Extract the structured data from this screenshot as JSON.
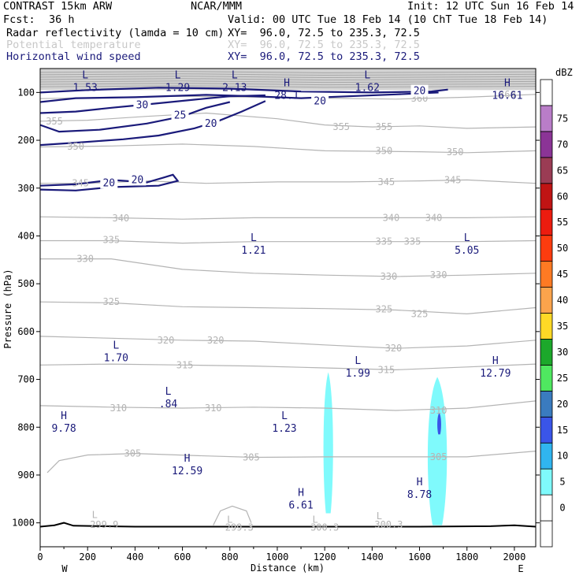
{
  "header": {
    "model": "CONTRAST 15km ARW",
    "org": "NCAR/MMM",
    "init": "Init: 12 UTC Sun 16 Feb 14",
    "fcst_label": "Fcst:",
    "fcst_value": "36 h",
    "valid": "Valid: 00 UTC Tue 18 Feb 14 (10 ChT Tue 18 Feb 14)",
    "fields": [
      {
        "name": "Radar reflectivity (lamda = 10 cm)",
        "xy": "XY=  96.0, 72.5 to 235.3, 72.5",
        "color": "#000000"
      },
      {
        "name": "Potential temperature",
        "xy": "XY=  96.0, 72.5 to 235.3, 72.5",
        "color": "#c8c8c8"
      },
      {
        "name": "Horizontal wind speed",
        "xy": "XY=  96.0, 72.5 to 235.3, 72.5",
        "color": "#1a1a7a"
      }
    ]
  },
  "chart_data": {
    "type": "cross-section contour",
    "xlabel": "Distance (km)",
    "ylabel": "Pressure (hPa)",
    "xlim": [
      0,
      2090
    ],
    "ylim": [
      1050,
      50
    ],
    "xticks": [
      0,
      200,
      400,
      600,
      800,
      1000,
      1200,
      1400,
      1600,
      1800,
      2000
    ],
    "yticks": [
      100,
      200,
      300,
      400,
      500,
      600,
      700,
      800,
      900,
      1000
    ],
    "left_end_label": "W",
    "right_end_label": "E",
    "theta_color": "#b4b4b4",
    "wind_color": "#1a1a7a",
    "theta_labels": [
      {
        "text": "360",
        "x": 1600,
        "p": 113
      },
      {
        "text": "360",
        "x": 1970,
        "p": 104
      },
      {
        "text": "355",
        "x": 60,
        "p": 160
      },
      {
        "text": "355",
        "x": 1270,
        "p": 172
      },
      {
        "text": "355",
        "x": 1450,
        "p": 172
      },
      {
        "text": "350",
        "x": 150,
        "p": 213
      },
      {
        "text": "350",
        "x": 1450,
        "p": 222
      },
      {
        "text": "350",
        "x": 1750,
        "p": 225
      },
      {
        "text": "345",
        "x": 170,
        "p": 290
      },
      {
        "text": "345",
        "x": 1460,
        "p": 287
      },
      {
        "text": "345",
        "x": 1740,
        "p": 283
      },
      {
        "text": "340",
        "x": 340,
        "p": 363
      },
      {
        "text": "340",
        "x": 1480,
        "p": 362
      },
      {
        "text": "340",
        "x": 1660,
        "p": 362
      },
      {
        "text": "335",
        "x": 300,
        "p": 408
      },
      {
        "text": "335",
        "x": 1450,
        "p": 412
      },
      {
        "text": "335",
        "x": 1570,
        "p": 412
      },
      {
        "text": "330",
        "x": 190,
        "p": 448
      },
      {
        "text": "330",
        "x": 1470,
        "p": 485
      },
      {
        "text": "330",
        "x": 1680,
        "p": 482
      },
      {
        "text": "325",
        "x": 300,
        "p": 538
      },
      {
        "text": "325",
        "x": 1450,
        "p": 553
      },
      {
        "text": "325",
        "x": 1600,
        "p": 563
      },
      {
        "text": "320",
        "x": 530,
        "p": 618
      },
      {
        "text": "320",
        "x": 740,
        "p": 618
      },
      {
        "text": "320",
        "x": 1490,
        "p": 635
      },
      {
        "text": "315",
        "x": 610,
        "p": 670
      },
      {
        "text": "315",
        "x": 1460,
        "p": 680
      },
      {
        "text": "310",
        "x": 330,
        "p": 760
      },
      {
        "text": "310",
        "x": 730,
        "p": 760
      },
      {
        "text": "310",
        "x": 1680,
        "p": 765
      },
      {
        "text": "305",
        "x": 390,
        "p": 855
      },
      {
        "text": "305",
        "x": 890,
        "p": 863
      },
      {
        "text": "305",
        "x": 1680,
        "p": 862
      },
      {
        "text": "299.9",
        "x": 270,
        "p": 1004
      },
      {
        "text": "299.3",
        "x": 840,
        "p": 1010
      },
      {
        "text": "300.3",
        "x": 1200,
        "p": 1010
      },
      {
        "text": "300.3",
        "x": 1470,
        "p": 1004
      }
    ],
    "theta_extrema": [
      {
        "text": "L",
        "x": 230,
        "p": 983
      },
      {
        "text": "L",
        "x": 800,
        "p": 993
      },
      {
        "text": "L",
        "x": 1160,
        "p": 993
      },
      {
        "text": "L",
        "x": 1430,
        "p": 986
      }
    ],
    "wind_labels": [
      {
        "text": "30",
        "x": 430,
        "p": 127
      },
      {
        "text": "25",
        "x": 590,
        "p": 148
      },
      {
        "text": "20",
        "x": 720,
        "p": 165
      },
      {
        "text": "20",
        "x": 1180,
        "p": 118
      },
      {
        "text": "20",
        "x": 1600,
        "p": 97
      },
      {
        "text": "20",
        "x": 290,
        "p": 290
      },
      {
        "text": "20",
        "x": 410,
        "p": 283
      }
    ],
    "wind_extrema": [
      {
        "kind": "L",
        "value": "1.53",
        "x": 190,
        "p": 77
      },
      {
        "kind": "L",
        "value": "1.29",
        "x": 580,
        "p": 77
      },
      {
        "kind": "L",
        "value": "2.13",
        "x": 820,
        "p": 77
      },
      {
        "kind": "H",
        "value": "28.1",
        "x": 1040,
        "p": 94
      },
      {
        "kind": "L",
        "value": "1.62",
        "x": 1380,
        "p": 77
      },
      {
        "kind": "H",
        "value": "16.61",
        "x": 1970,
        "p": 94
      },
      {
        "kind": "L",
        "value": "1.21",
        "x": 900,
        "p": 417
      },
      {
        "kind": "L",
        "value": "5.05",
        "x": 1800,
        "p": 417
      },
      {
        "kind": "L",
        "value": "1.70",
        "x": 320,
        "p": 642
      },
      {
        "kind": "L",
        "value": "1.99",
        "x": 1340,
        "p": 674
      },
      {
        "kind": "H",
        "value": "12.79",
        "x": 1920,
        "p": 674
      },
      {
        "kind": "L",
        "value": ".84",
        "x": 540,
        "p": 739
      },
      {
        "kind": "H",
        "value": "9.78",
        "x": 100,
        "p": 790
      },
      {
        "kind": "L",
        "value": "1.23",
        "x": 1030,
        "p": 790
      },
      {
        "kind": "H",
        "value": "12.59",
        "x": 620,
        "p": 879
      },
      {
        "kind": "H",
        "value": "6.61",
        "x": 1100,
        "p": 950
      },
      {
        "kind": "H",
        "value": "8.78",
        "x": 1600,
        "p": 928
      }
    ],
    "reflectivity_cells": [
      {
        "x_center": 1215,
        "x_half_width": 25,
        "p_top": 685,
        "p_bottom": 980,
        "dbz": 5
      },
      {
        "x_center": 1675,
        "x_half_width": 50,
        "p_top": 695,
        "p_bottom": 1005,
        "dbz": 5
      },
      {
        "x_center": 1683,
        "x_half_width": 10,
        "p_top": 770,
        "p_bottom": 815,
        "dbz": 15
      }
    ],
    "colorbar": {
      "title": "dBZ",
      "levels": [
        {
          "label": "",
          "color": "#ffffff"
        },
        {
          "label": "0",
          "color": "#ffffff"
        },
        {
          "label": "5",
          "color": "#7ffafc"
        },
        {
          "label": "10",
          "color": "#30b5ef"
        },
        {
          "label": "15",
          "color": "#3a55e8"
        },
        {
          "label": "20",
          "color": "#3a7bbf"
        },
        {
          "label": "25",
          "color": "#4fe860"
        },
        {
          "label": "30",
          "color": "#1ca82b"
        },
        {
          "label": "35",
          "color": "#fed926"
        },
        {
          "label": "40",
          "color": "#fba44c"
        },
        {
          "label": "45",
          "color": "#fe7a23"
        },
        {
          "label": "50",
          "color": "#fd3c0f"
        },
        {
          "label": "55",
          "color": "#ec1c0f"
        },
        {
          "label": "60",
          "color": "#c01414"
        },
        {
          "label": "65",
          "color": "#9a3c54"
        },
        {
          "label": "70",
          "color": "#8b3496"
        },
        {
          "label": "75",
          "color": "#b97dc8"
        },
        {
          "label": "",
          "color": "#ffffff"
        }
      ]
    }
  }
}
